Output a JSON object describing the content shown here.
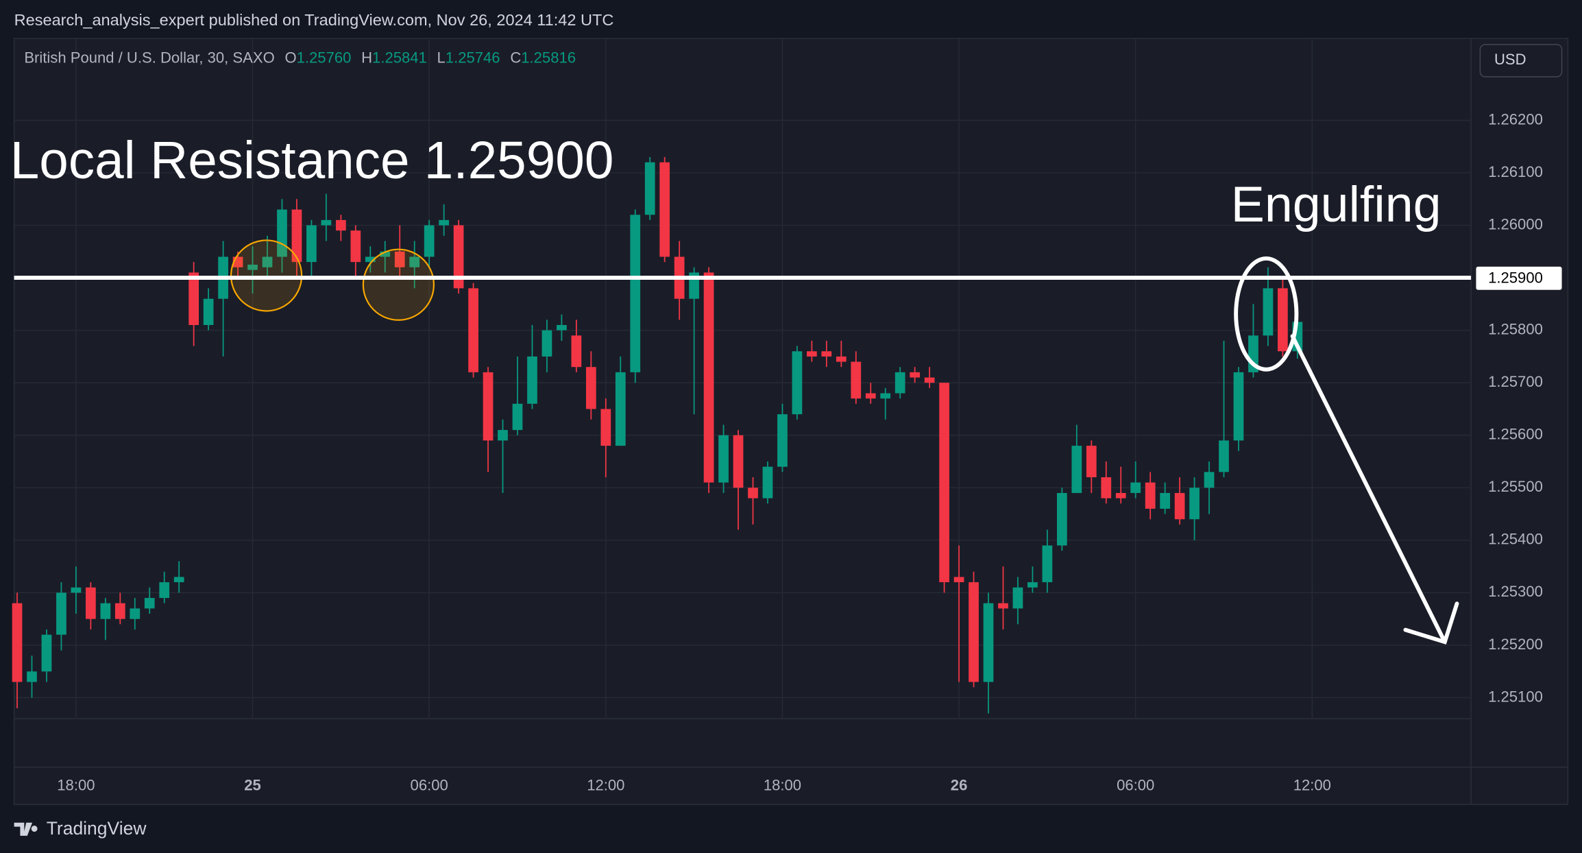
{
  "header": {
    "published": "Research_analysis_expert published on TradingView.com, Nov 26, 2024 11:42 UTC",
    "symbol": "British Pound / U.S. Dollar, 30, SAXO",
    "ohlc": [
      {
        "label": "O",
        "value": "1.25760"
      },
      {
        "label": "H",
        "value": "1.25841"
      },
      {
        "label": "L",
        "value": "1.25746"
      },
      {
        "label": "C",
        "value": "1.25816"
      }
    ]
  },
  "currency": "USD",
  "footer": {
    "brand": "TradingView"
  },
  "chart_data": {
    "type": "candlestick",
    "up_color": "#089981",
    "down_color": "#f23645",
    "grid": true,
    "categories": [
      null,
      null,
      null,
      null,
      "18:00",
      null,
      null,
      null,
      null,
      null,
      null,
      null,
      null,
      null,
      null,
      null,
      "25",
      null,
      null,
      null,
      null,
      null,
      null,
      null,
      null,
      null,
      null,
      null,
      "06:00",
      null,
      null,
      null,
      null,
      null,
      null,
      null,
      null,
      null,
      null,
      null,
      "12:00",
      null,
      null,
      null,
      null,
      null,
      null,
      null,
      null,
      null,
      null,
      null,
      "18:00",
      null,
      null,
      null,
      null,
      null,
      null,
      null,
      null,
      null,
      null,
      null,
      "26",
      null,
      null,
      null,
      null,
      null,
      null,
      null,
      null,
      null,
      null,
      null,
      "06:00",
      null,
      null,
      null,
      null,
      null,
      null,
      null,
      null,
      null,
      null,
      null,
      "12:00",
      null,
      null,
      null,
      null,
      null,
      null,
      null,
      null,
      null,
      null
    ],
    "open": [
      1.2528,
      1.2513,
      1.2515,
      1.2522,
      1.253,
      1.2531,
      1.2525,
      1.2528,
      1.2525,
      1.2527,
      1.2529,
      1.2532,
      1.2591,
      1.2581,
      1.2586,
      1.2594,
      1.25915,
      1.2592,
      1.2594,
      1.2603,
      1.2593,
      1.26,
      1.2601,
      1.2599,
      1.2593,
      1.2594,
      1.2595,
      1.2592,
      1.2594,
      1.26,
      1.26,
      1.2588,
      1.2572,
      1.2559,
      1.2561,
      1.2566,
      1.2575,
      1.258,
      1.2579,
      1.2573,
      1.2565,
      1.2558,
      1.2572,
      1.2602,
      1.2612,
      1.2594,
      1.2586,
      1.2591,
      1.2551,
      1.256,
      1.255,
      1.2548,
      1.2554,
      1.2564,
      1.2576,
      1.2576,
      1.2575,
      1.2574,
      1.2568,
      1.2567,
      1.2568,
      1.2572,
      1.2571,
      1.257,
      1.2533,
      1.2532,
      1.2513,
      1.2528,
      1.2527,
      1.2531,
      1.2532,
      1.2539,
      1.2549,
      1.2558,
      1.2552,
      1.2549,
      1.2549,
      1.2551,
      1.2546,
      1.2549,
      1.2544,
      1.255,
      1.2553,
      1.2559,
      1.2572,
      1.2579,
      1.2588,
      1.2576,
      null,
      null,
      null,
      null,
      null,
      null,
      null,
      null,
      null,
      null,
      null
    ],
    "high": [
      1.253,
      1.2518,
      1.2523,
      1.2532,
      1.2535,
      1.2532,
      1.2529,
      1.253,
      1.2529,
      1.2531,
      1.2534,
      1.2536,
      1.2593,
      1.2588,
      1.2597,
      1.2595,
      1.2596,
      1.2598,
      1.2605,
      1.2605,
      1.2601,
      1.2606,
      1.2602,
      1.26,
      1.2596,
      1.2597,
      1.26,
      1.2597,
      1.2601,
      1.2604,
      1.2601,
      1.2589,
      1.2573,
      1.2563,
      1.2575,
      1.2581,
      1.2582,
      1.2583,
      1.2582,
      1.2576,
      1.2567,
      1.2575,
      1.2603,
      1.2613,
      1.2613,
      1.2597,
      1.2592,
      1.2592,
      1.2562,
      1.2561,
      1.2552,
      1.2555,
      1.2566,
      1.2577,
      1.2578,
      1.2578,
      1.2578,
      1.2576,
      1.257,
      1.2569,
      1.2573,
      1.2573,
      1.2573,
      1.257,
      1.2539,
      1.2534,
      1.253,
      1.2535,
      1.2533,
      1.2535,
      1.2542,
      1.255,
      1.2562,
      1.2559,
      1.2555,
      1.2554,
      1.2555,
      1.2553,
      1.2551,
      1.2552,
      1.2552,
      1.2555,
      1.2578,
      1.2573,
      1.2585,
      1.2592,
      1.259,
      1.25841,
      null,
      null,
      null,
      null,
      null,
      null,
      null,
      null,
      null,
      null,
      null
    ],
    "low": [
      1.2508,
      1.251,
      1.2513,
      1.2519,
      1.2526,
      1.2523,
      1.2521,
      1.2524,
      1.2523,
      1.2526,
      1.2528,
      1.253,
      1.2577,
      1.258,
      1.2575,
      1.259,
      1.2587,
      1.259,
      1.2591,
      1.259,
      1.259,
      1.2597,
      1.2597,
      1.259,
      1.2591,
      1.2591,
      1.259,
      1.2588,
      1.2592,
      1.2598,
      1.2587,
      1.2571,
      1.2553,
      1.2549,
      1.256,
      1.2565,
      1.2572,
      1.2578,
      1.2572,
      1.2563,
      1.2552,
      1.2558,
      1.257,
      1.2601,
      1.2593,
      1.2582,
      1.2564,
      1.2549,
      1.2549,
      1.2542,
      1.2543,
      1.2547,
      1.2553,
      1.2563,
      1.2574,
      1.2573,
      1.2573,
      1.2566,
      1.2566,
      1.2563,
      1.2567,
      1.257,
      1.2569,
      1.253,
      1.2513,
      1.2512,
      1.2507,
      1.2523,
      1.2524,
      1.253,
      1.253,
      1.2538,
      1.2549,
      1.2549,
      1.2547,
      1.2547,
      1.2548,
      1.2544,
      1.2545,
      1.2543,
      1.254,
      1.2545,
      1.2552,
      1.2557,
      1.2571,
      1.2577,
      1.2575,
      1.25746,
      null,
      null,
      null,
      null,
      null,
      null,
      null,
      null,
      null,
      null,
      null
    ],
    "close": [
      1.2513,
      1.2515,
      1.2522,
      1.253,
      1.2531,
      1.2525,
      1.2528,
      1.2525,
      1.2527,
      1.2529,
      1.2532,
      1.2533,
      1.2581,
      1.2586,
      1.2594,
      1.2592,
      1.25925,
      1.2594,
      1.2603,
      1.2593,
      1.26,
      1.2601,
      1.2599,
      1.2593,
      1.2594,
      1.2595,
      1.2592,
      1.2594,
      1.26,
      1.2601,
      1.2588,
      1.2572,
      1.2559,
      1.2561,
      1.2566,
      1.2575,
      1.258,
      1.2581,
      1.2573,
      1.2565,
      1.2558,
      1.2572,
      1.2602,
      1.2612,
      1.2594,
      1.2586,
      1.2591,
      1.2551,
      1.256,
      1.255,
      1.2548,
      1.2554,
      1.2564,
      1.2576,
      1.2575,
      1.2575,
      1.2574,
      1.2567,
      1.2567,
      1.2568,
      1.2572,
      1.2571,
      1.257,
      1.2532,
      1.2532,
      1.2513,
      1.2528,
      1.2527,
      1.2531,
      1.2532,
      1.2539,
      1.2549,
      1.2558,
      1.2552,
      1.2548,
      1.2548,
      1.2551,
      1.2546,
      1.2549,
      1.2544,
      1.255,
      1.2553,
      1.2559,
      1.2572,
      1.2579,
      1.2588,
      1.2576,
      1.25816,
      null,
      null,
      null,
      null,
      null,
      null,
      null,
      null,
      null,
      null,
      null
    ],
    "ylim": [
      1.2506,
      1.26356
    ],
    "yticks": [
      {
        "value": 1.251,
        "label": "1.25100"
      },
      {
        "value": 1.252,
        "label": "1.25200"
      },
      {
        "value": 1.253,
        "label": "1.25300"
      },
      {
        "value": 1.254,
        "label": "1.25400"
      },
      {
        "value": 1.255,
        "label": "1.25500"
      },
      {
        "value": 1.256,
        "label": "1.25600"
      },
      {
        "value": 1.257,
        "label": "1.25700"
      },
      {
        "value": 1.258,
        "label": "1.25800"
      },
      {
        "value": 1.26,
        "label": "1.26000"
      },
      {
        "value": 1.261,
        "label": "1.26100"
      },
      {
        "value": 1.262,
        "label": "1.26200"
      }
    ],
    "hlines": [
      {
        "value": 1.259,
        "label": "1.25900",
        "color": "#ffffff"
      }
    ],
    "annotations": [
      "Local Resistance 1.25900",
      "Engulfing"
    ]
  }
}
